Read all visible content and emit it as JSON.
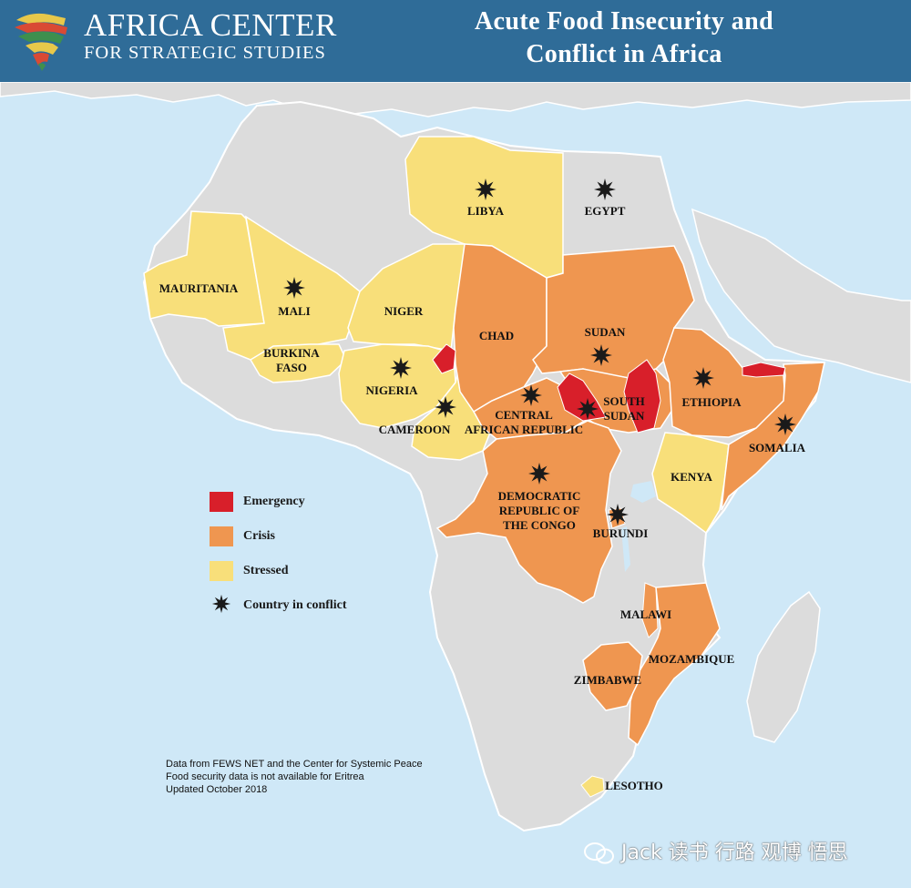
{
  "header": {
    "org_name_line1": "AFRICA CENTER",
    "org_name_line2": "FOR STRATEGIC STUDIES",
    "title_line1": "Acute Food Insecurity and",
    "title_line2": "Conflict in Africa"
  },
  "colors": {
    "ocean": "#cfe8f7",
    "header": "#2f6c98",
    "no_data": "#dcdcdc",
    "emergency": "#d81f2a",
    "crisis": "#ef9650",
    "stressed": "#f8df7a",
    "conflict": "#1a1a1a"
  },
  "legend": {
    "emergency": "Emergency",
    "crisis": "Crisis",
    "stressed": "Stressed",
    "conflict": "Country in conflict"
  },
  "countries": [
    {
      "name": "LIBYA",
      "status": "stressed",
      "conflict": true
    },
    {
      "name": "EGYPT",
      "status": "none",
      "conflict": true
    },
    {
      "name": "MAURITANIA",
      "status": "stressed",
      "conflict": false
    },
    {
      "name": "MALI",
      "status": "stressed",
      "conflict": true
    },
    {
      "name": "NIGER",
      "status": "stressed",
      "conflict": false
    },
    {
      "name": "CHAD",
      "status": "crisis",
      "conflict": false
    },
    {
      "name": "SUDAN",
      "status": "crisis",
      "conflict": true
    },
    {
      "name": "BURKINA FASO",
      "status": "stressed",
      "conflict": false
    },
    {
      "name": "NIGERIA",
      "status": "stressed",
      "conflict": true
    },
    {
      "name": "CAMEROON",
      "status": "stressed",
      "conflict": true
    },
    {
      "name": "CENTRAL AFRICAN REPUBLIC",
      "status": "crisis",
      "conflict": true
    },
    {
      "name": "SOUTH SUDAN",
      "status": "crisis",
      "conflict": true
    },
    {
      "name": "ETHIOPIA",
      "status": "crisis",
      "conflict": true
    },
    {
      "name": "SOMALIA",
      "status": "crisis",
      "conflict": true
    },
    {
      "name": "KENYA",
      "status": "stressed",
      "conflict": false
    },
    {
      "name": "DEMOCRATIC REPUBLIC OF THE CONGO",
      "status": "crisis",
      "conflict": true
    },
    {
      "name": "BURUNDI",
      "status": "crisis",
      "conflict": true
    },
    {
      "name": "MALAWI",
      "status": "crisis",
      "conflict": false
    },
    {
      "name": "MOZAMBIQUE",
      "status": "crisis",
      "conflict": false
    },
    {
      "name": "ZIMBABWE",
      "status": "crisis",
      "conflict": false
    },
    {
      "name": "LESOTHO",
      "status": "stressed",
      "conflict": false
    }
  ],
  "labels": {
    "libya": "LIBYA",
    "egypt": "EGYPT",
    "mauritania": "MAURITANIA",
    "mali": "MALI",
    "niger": "NIGER",
    "chad": "CHAD",
    "sudan": "SUDAN",
    "burkina_1": "BURKINA",
    "burkina_2": "FASO",
    "nigeria": "NIGERIA",
    "cameroon": "CAMEROON",
    "car_1": "CENTRAL",
    "car_2": "AFRICAN REPUBLIC",
    "south_sudan_1": "SOUTH",
    "south_sudan_2": "SUDAN",
    "ethiopia": "ETHIOPIA",
    "somalia": "SOMALIA",
    "kenya": "KENYA",
    "drc_1": "DEMOCRATIC",
    "drc_2": "REPUBLIC OF",
    "drc_3": "THE CONGO",
    "burundi": "BURUNDI",
    "malawi": "MALAWI",
    "mozambique": "MOZAMBIQUE",
    "zimbabwe": "ZIMBABWE",
    "lesotho": "LESOTHO"
  },
  "notes": {
    "line1": "Data from FEWS NET and the Center for Systemic Peace",
    "line2": "Food security data is not available for Eritrea",
    "line3": "Updated October 2018"
  },
  "watermark": "Jack 读书 行路 观博 悟思"
}
